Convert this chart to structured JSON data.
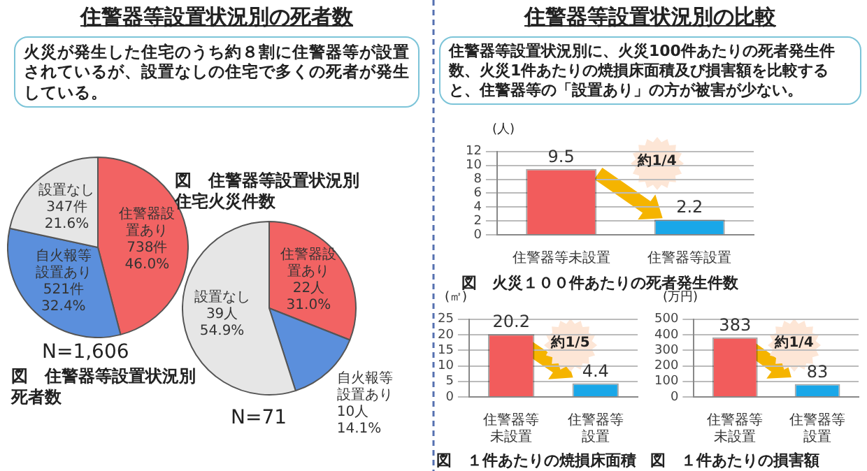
{
  "chart_data": [
    {
      "type": "pie",
      "title": "住警器等設置状況別の死者数",
      "subtitle": "火災が発生した住宅のうち約８割に住警器等が設置されているが、設置なしの住宅で多くの死者が発生している。",
      "categories": [
        "住警器設置あり",
        "自火報等設置あり",
        "設置なし"
      ],
      "values": [
        738,
        521,
        347
      ],
      "value_labels": [
        "738件 46.0%",
        "521件 32.4%",
        "347件 21.6%"
      ],
      "colors": [
        "#f26363",
        "#5b8fdc",
        "#e6e6e6"
      ],
      "annotations": [
        "N=1,606",
        "図　住警器等設置状況別住宅火災件数"
      ]
    },
    {
      "type": "pie",
      "categories": [
        "住警器設置あり",
        "自火報等設置あり",
        "設置なし"
      ],
      "values": [
        22,
        10,
        39
      ],
      "value_labels": [
        "22人 31.0%",
        "10人 14.1%",
        "39人 54.9%"
      ],
      "colors": [
        "#f26363",
        "#5b8fdc",
        "#e6e6e6"
      ],
      "annotations": [
        "N=71",
        "図　住警器等設置状況別死者数"
      ]
    },
    {
      "type": "bar",
      "title": "図　火災１００件あたりの死者発生件数",
      "ylabel": "(人)",
      "categories": [
        "住警器等未設置",
        "住警器等設置"
      ],
      "values": [
        9.5,
        2.2
      ],
      "colors": [
        "#f25c5c",
        "#1aa7e8"
      ],
      "ylim": [
        0,
        12
      ],
      "yticks": [
        0,
        2,
        4,
        6,
        8,
        10,
        12
      ],
      "grid": "y",
      "data_labels": true,
      "annotations": [
        "住警器等設置状況別の比較",
        "住警器等設置状況別に、火災100件あたりの死者発生件数、火災1件あたりの焼損床面積及び損害額を比較すると、住警器等の「設置あり」の方が被害が少ない。",
        "約1/4"
      ]
    },
    {
      "type": "bar",
      "title": "図　１件あたりの焼損床面積",
      "ylabel": "(㎡)",
      "categories": [
        "住警器等未設置",
        "住警器等設置"
      ],
      "values": [
        20.2,
        4.4
      ],
      "colors": [
        "#f25c5c",
        "#1aa7e8"
      ],
      "ylim": [
        0,
        25
      ],
      "yticks": [
        0,
        5,
        10,
        15,
        20,
        25
      ],
      "grid": "y",
      "data_labels": true,
      "annotations": [
        "約1/5"
      ]
    },
    {
      "type": "bar",
      "title": "図　１件あたりの損害額",
      "ylabel": "(万円)",
      "categories": [
        "住警器等未設置",
        "住警器等設置"
      ],
      "values": [
        383,
        83
      ],
      "colors": [
        "#f25c5c",
        "#1aa7e8"
      ],
      "ylim": [
        0,
        500
      ],
      "yticks": [
        0,
        100,
        200,
        300,
        400,
        500
      ],
      "grid": "y",
      "data_labels": true,
      "annotations": [
        "約1/4"
      ]
    }
  ]
}
